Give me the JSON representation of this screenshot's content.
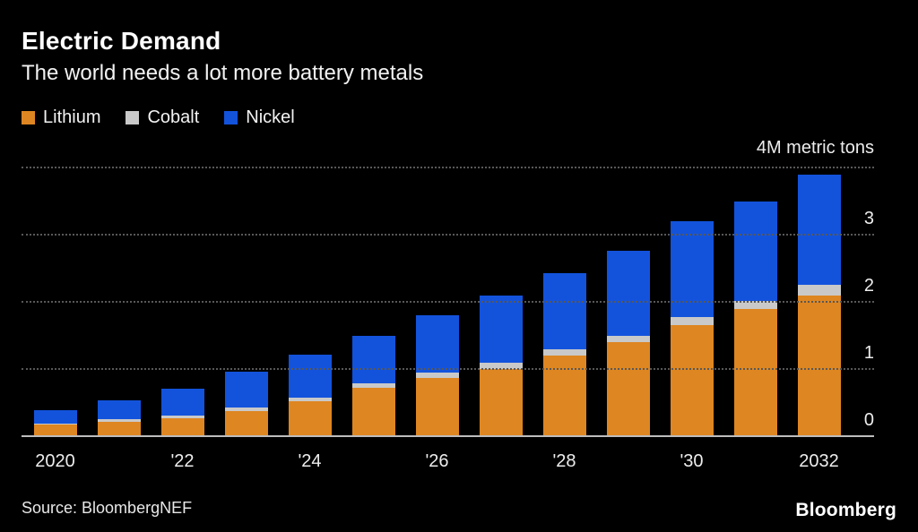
{
  "header": {
    "title": "Electric Demand",
    "subtitle": "The world needs a lot more battery metals"
  },
  "legend": [
    {
      "label": "Lithium",
      "color": "#de8621"
    },
    {
      "label": "Cobalt",
      "color": "#c9c9c9"
    },
    {
      "label": "Nickel",
      "color": "#1353dc"
    }
  ],
  "chart_data": {
    "type": "bar",
    "stacked": true,
    "title": "Electric Demand",
    "subtitle": "The world needs a lot more battery metals",
    "unit_label": "4M metric tons",
    "categories": [
      "2020",
      "2021",
      "2022",
      "2023",
      "2024",
      "2025",
      "2026",
      "2027",
      "2028",
      "2029",
      "2030",
      "2031",
      "2032"
    ],
    "x_tick_labels": [
      "2020",
      "",
      "'22",
      "",
      "'24",
      "",
      "'26",
      "",
      "'28",
      "",
      "'30",
      "",
      "2032"
    ],
    "series": [
      {
        "name": "Lithium",
        "color": "#de8621",
        "values": [
          0.17,
          0.22,
          0.27,
          0.38,
          0.52,
          0.72,
          0.87,
          1.0,
          1.2,
          1.4,
          1.65,
          1.9,
          2.1
        ]
      },
      {
        "name": "Cobalt",
        "color": "#c9c9c9",
        "values": [
          0.02,
          0.03,
          0.04,
          0.05,
          0.06,
          0.07,
          0.08,
          0.09,
          0.1,
          0.1,
          0.12,
          0.12,
          0.15
        ]
      },
      {
        "name": "Nickel",
        "color": "#1353dc",
        "values": [
          0.2,
          0.28,
          0.4,
          0.53,
          0.64,
          0.7,
          0.85,
          1.0,
          1.13,
          1.26,
          1.43,
          1.48,
          1.65
        ]
      }
    ],
    "ylim": [
      0,
      4
    ],
    "y_ticks": [
      0,
      1,
      2,
      3
    ],
    "grid": "dotted horizontal, solid baseline",
    "legend_position": "top-left",
    "background": "#000000"
  },
  "footer": {
    "source": "Source: BloombergNEF",
    "brand": "Bloomberg"
  }
}
